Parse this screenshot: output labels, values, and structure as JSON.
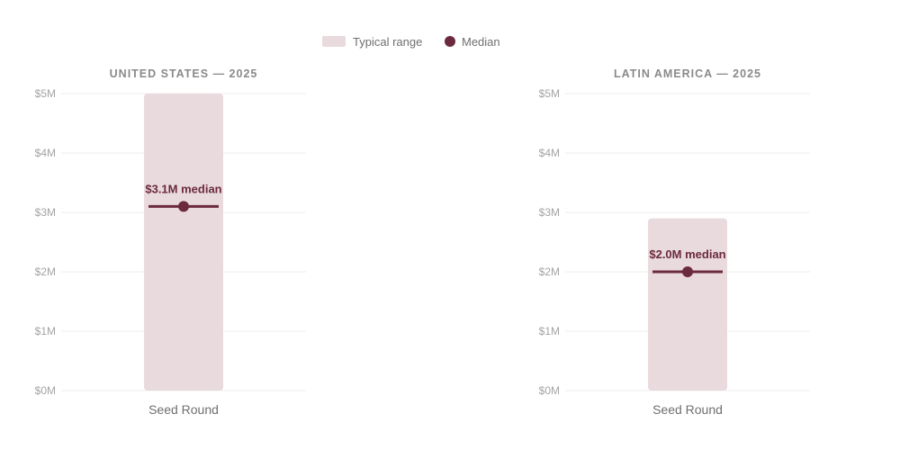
{
  "colors": {
    "range_fill": "#e9dade",
    "median": "#6b2a3d",
    "grid": "#ececec",
    "tick_text": "#a3a3a3",
    "title_text": "#8a8a8a",
    "category_text": "#6f6f6f"
  },
  "legend": {
    "range_label": "Typical range",
    "median_label": "Median"
  },
  "chart_data": [
    {
      "type": "range-bar",
      "title": "UNITED STATES — 2025",
      "categories": [
        "Seed Round"
      ],
      "range": [
        [
          0,
          5
        ]
      ],
      "median": [
        3.1
      ],
      "median_labels": [
        "$3.1M median"
      ],
      "y_ticks": [
        0,
        1,
        2,
        3,
        4,
        5
      ],
      "y_tick_labels": [
        "$0M",
        "$1M",
        "$2M",
        "$3M",
        "$4M",
        "$5M"
      ],
      "ylim": [
        0,
        5
      ],
      "grid": true
    },
    {
      "type": "range-bar",
      "title": "LATIN AMERICA — 2025",
      "categories": [
        "Seed Round"
      ],
      "range": [
        [
          0,
          2.9
        ]
      ],
      "median": [
        2.0
      ],
      "median_labels": [
        "$2.0M median"
      ],
      "y_ticks": [
        0,
        1,
        2,
        3,
        4,
        5
      ],
      "y_tick_labels": [
        "$0M",
        "$1M",
        "$2M",
        "$3M",
        "$4M",
        "$5M"
      ],
      "ylim": [
        0,
        5
      ],
      "grid": true
    }
  ]
}
